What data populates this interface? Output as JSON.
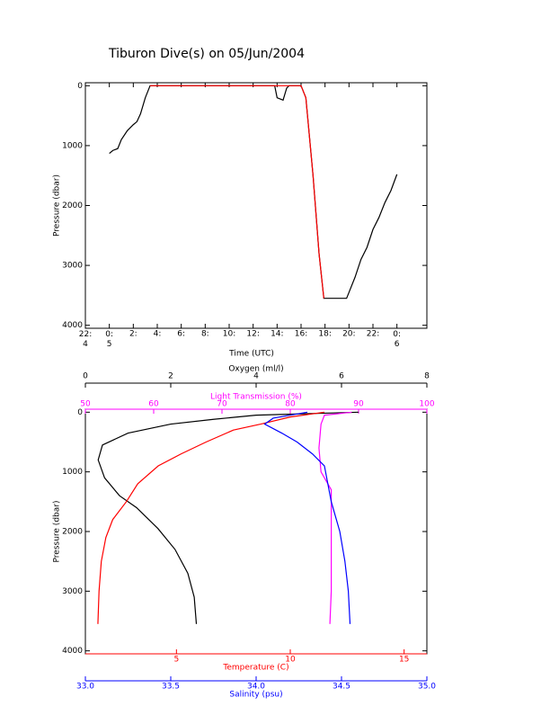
{
  "chart_data": [
    {
      "type": "line",
      "title": "Tiburon Dive(s) on 05/Jun/2004",
      "xlabel": "Time (UTC)",
      "ylabel": "Pressure (dbar)",
      "xlim": [
        -2,
        26.5
      ],
      "ylim": [
        4050,
        -50
      ],
      "xticks": [
        {
          "value": -2,
          "label": "22:\n4"
        },
        {
          "value": 0,
          "label": "0:\n5"
        },
        {
          "value": 2,
          "label": "2:"
        },
        {
          "value": 4,
          "label": "4:"
        },
        {
          "value": 6,
          "label": "6:"
        },
        {
          "value": 8,
          "label": "8:"
        },
        {
          "value": 10,
          "label": "10:"
        },
        {
          "value": 12,
          "label": "12:"
        },
        {
          "value": 14,
          "label": "14:"
        },
        {
          "value": 16,
          "label": "16:"
        },
        {
          "value": 18,
          "label": "18:"
        },
        {
          "value": 20,
          "label": "20:"
        },
        {
          "value": 22,
          "label": "22:"
        },
        {
          "value": 24,
          "label": "0:\n6"
        }
      ],
      "yticks": [
        0,
        1000,
        2000,
        3000,
        4000
      ],
      "series": [
        {
          "color": "#000000",
          "x": [
            0,
            0.3,
            0.7,
            1,
            1.5,
            2,
            2.3,
            2.6,
            3,
            3.4,
            13.8,
            14,
            14.5,
            14.8,
            15,
            16,
            16.4,
            17,
            17.5,
            17.9,
            19.8,
            20,
            20.5,
            21,
            21.5,
            22,
            22.5,
            23,
            23.5,
            24
          ],
          "y": [
            1130,
            1080,
            1050,
            900,
            750,
            650,
            600,
            470,
            200,
            0,
            0,
            200,
            240,
            40,
            0,
            0,
            200,
            1500,
            2800,
            3550,
            3550,
            3450,
            3200,
            2900,
            2700,
            2400,
            2200,
            1950,
            1750,
            1480
          ]
        },
        {
          "color": "#ff0000",
          "x": [
            3.4,
            13.8,
            16,
            16.4,
            17,
            17.5,
            17.9
          ],
          "y": [
            0,
            0,
            0,
            200,
            1500,
            2800,
            3550
          ]
        }
      ]
    },
    {
      "type": "profile",
      "ylabel": "Pressure (dbar)",
      "ylim": [
        4050,
        -50
      ],
      "yticks": [
        0,
        1000,
        2000,
        3000,
        4000
      ],
      "x_axes": [
        {
          "label": "Oxygen (ml/l)",
          "position": "top",
          "color": "#000000",
          "xlim": [
            0,
            8
          ],
          "xticks": [
            0,
            2,
            4,
            6,
            8
          ]
        },
        {
          "label": "Light Transmission (%)",
          "position": "top-inner",
          "color": "#ff00ff",
          "xlim": [
            50,
            100
          ],
          "xticks": [
            50,
            60,
            70,
            80,
            90,
            100
          ]
        },
        {
          "label": "Temperature (C)",
          "position": "bottom",
          "color": "#ff0000",
          "xlim": [
            1,
            16
          ],
          "xticks": [
            5,
            10,
            15
          ]
        },
        {
          "label": "Salinity (psu)",
          "position": "bottom-outer",
          "color": "#0000ff",
          "xlim": [
            33,
            35
          ],
          "xticks": [
            {
              "value": 33,
              "label": "33.0"
            },
            {
              "value": 33.5,
              "label": "33.5"
            },
            {
              "value": 34,
              "label": "34.0"
            },
            {
              "value": 34.5,
              "label": "34.5"
            },
            {
              "value": 35,
              "label": "35.0"
            }
          ]
        }
      ],
      "series": [
        {
          "color": "#000000",
          "axis": 0,
          "x": [
            6.4,
            4,
            3,
            2,
            1,
            0.4,
            0.3,
            0.45,
            0.8,
            1.2,
            1.7,
            2.1,
            2.4,
            2.55,
            2.6
          ],
          "y": [
            0,
            50,
            120,
            200,
            350,
            550,
            800,
            1100,
            1400,
            1600,
            1950,
            2300,
            2700,
            3100,
            3550
          ]
        },
        {
          "color": "#ff00ff",
          "axis": 1,
          "x": [
            89,
            85,
            84.5,
            84.2,
            84.5,
            86,
            86,
            86,
            85.8
          ],
          "y": [
            0,
            50,
            200,
            600,
            1000,
            1300,
            2000,
            3000,
            3550
          ]
        },
        {
          "color": "#ff0000",
          "axis": 2,
          "x": [
            11.5,
            10,
            8.7,
            7.5,
            6.3,
            5.2,
            4.2,
            3.3,
            2.8,
            2.2,
            1.9,
            1.7,
            1.6,
            1.55
          ],
          "y": [
            0,
            80,
            200,
            300,
            500,
            700,
            900,
            1200,
            1500,
            1800,
            2100,
            2500,
            3000,
            3550
          ]
        },
        {
          "color": "#0000ff",
          "axis": 3,
          "x": [
            34.3,
            34.1,
            34.05,
            34.15,
            34.24,
            34.33,
            34.4,
            34.42,
            34.44,
            34.49,
            34.52,
            34.54,
            34.55
          ],
          "y": [
            0,
            100,
            200,
            350,
            500,
            700,
            900,
            1200,
            1500,
            2000,
            2500,
            3000,
            3550
          ]
        }
      ]
    }
  ]
}
